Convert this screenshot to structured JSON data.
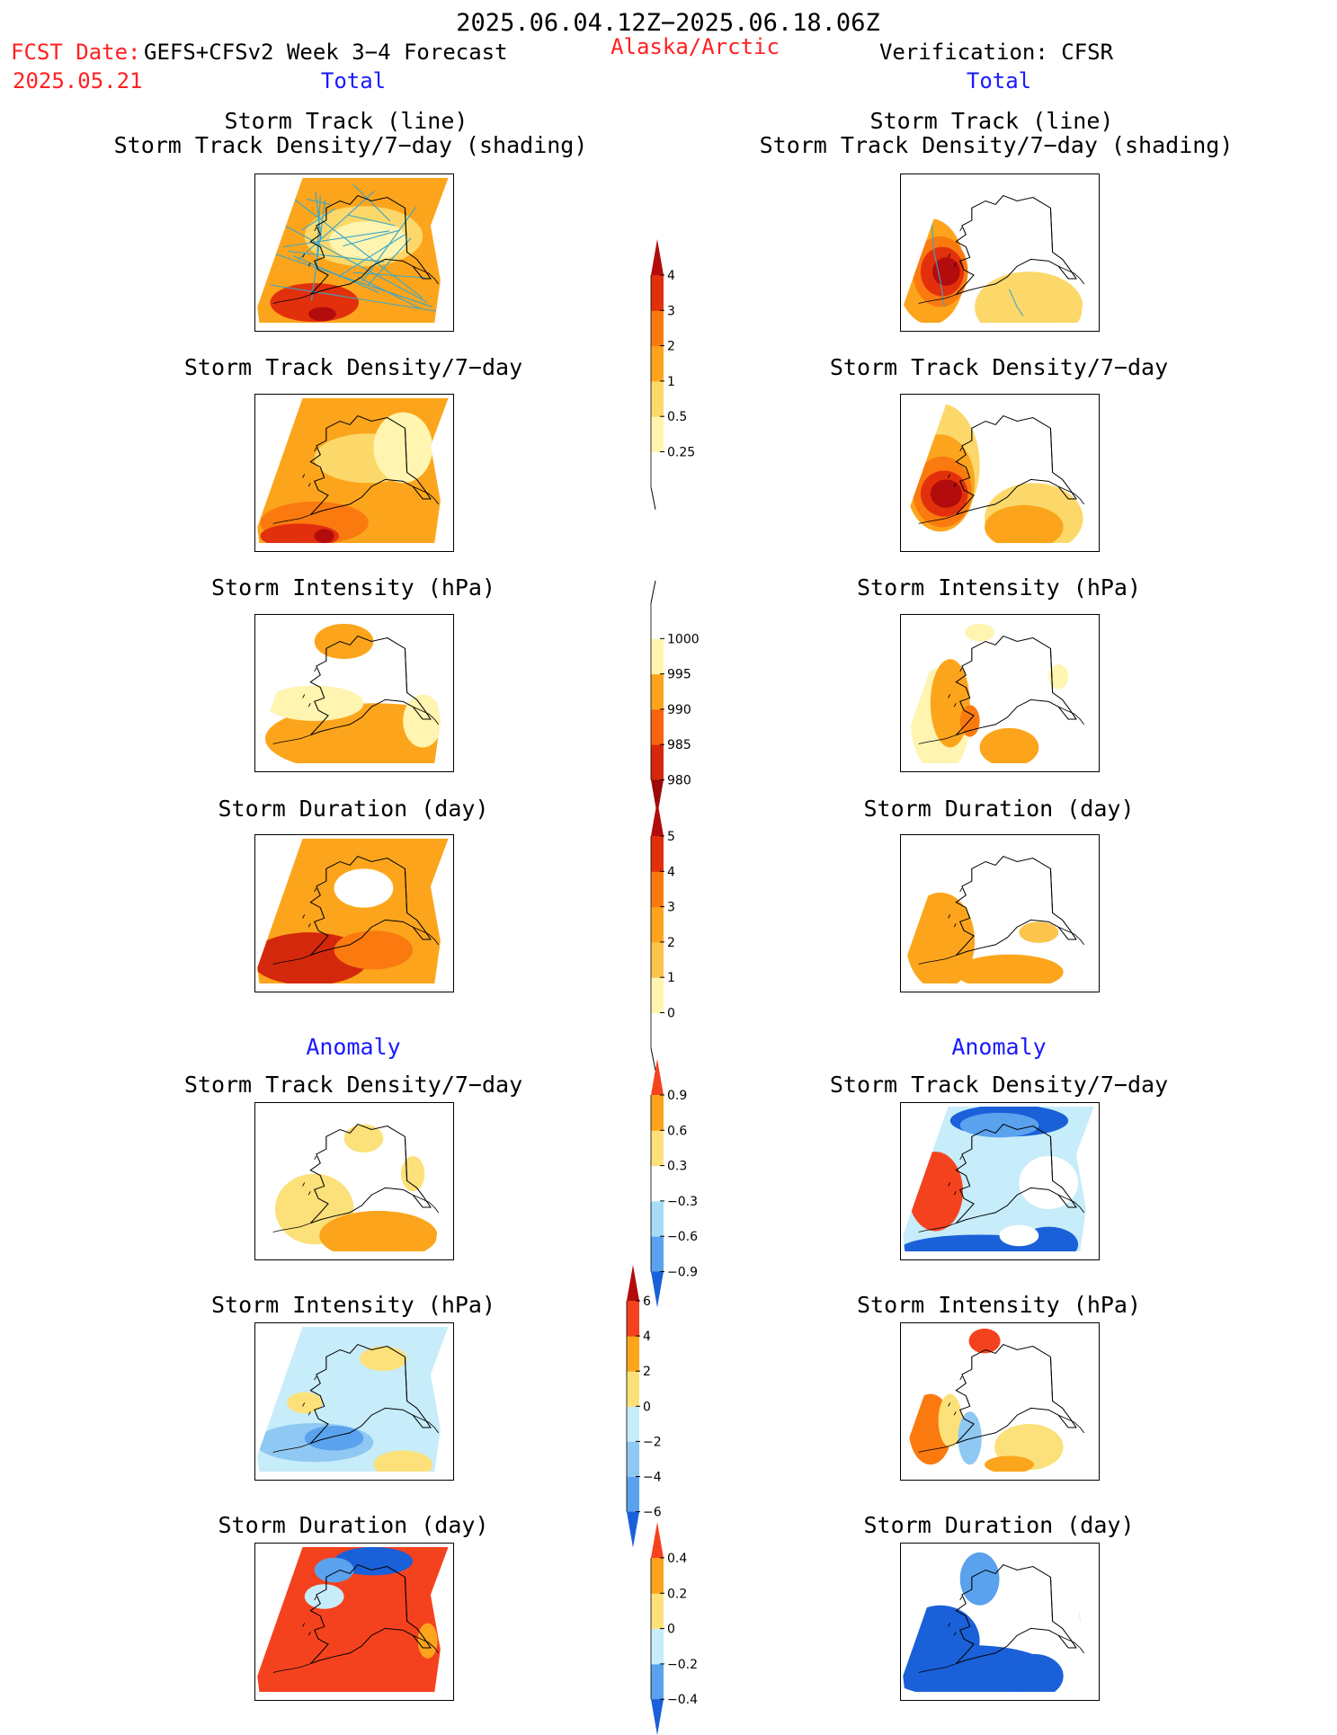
{
  "header": {
    "period": "2025.06.04.12Z−2025.06.18.06Z",
    "fcst_date_label": "FCST Date:",
    "fcst_date": "2025.05.21",
    "model": "GEFS+CFSv2 Week 3−4 Forecast",
    "region": "Alaska/Arctic",
    "verification": "Verification: CFSR"
  },
  "sections": {
    "total": "Total",
    "anomaly": "Anomaly"
  },
  "panel_titles": {
    "track_line": "Storm Track (line)",
    "track_shading": "Storm Track Density/7−day (shading)",
    "density": "Storm Track Density/7−day",
    "intensity": "Storm Intensity (hPa)",
    "duration": "Storm Duration (day)"
  },
  "colorbars": {
    "density_total": {
      "ticks": [
        "0.25",
        "0.5",
        "1",
        "2",
        "3",
        "4"
      ],
      "colors": [
        "#ffffff",
        "#fff4b0",
        "#fcd86a",
        "#fca51c",
        "#fa7a10",
        "#e3300c",
        "#b20c0c"
      ]
    },
    "intensity_total": {
      "ticks": [
        "980",
        "985",
        "990",
        "995",
        "1000"
      ],
      "colors": [
        "#9a0a0a",
        "#d4280c",
        "#fa6310",
        "#fca51c",
        "#fff4b0",
        "#ffffff"
      ]
    },
    "duration_total": {
      "ticks": [
        "0",
        "1",
        "2",
        "3",
        "4",
        "5"
      ],
      "colors": [
        "#ffffff",
        "#fff4b0",
        "#fcc44c",
        "#fca51c",
        "#fa7a10",
        "#e3300c",
        "#b20c0c"
      ]
    },
    "density_anom": {
      "ticks": [
        "−0.9",
        "−0.6",
        "−0.3",
        "0.3",
        "0.6",
        "0.9"
      ],
      "colors": [
        "#1a60d8",
        "#5aa2ee",
        "#a6dcf6",
        "#ffffff",
        "#fce17a",
        "#fca51c",
        "#f5421e"
      ]
    },
    "intensity_anom": {
      "ticks": [
        "−6",
        "−4",
        "−2",
        "0",
        "2",
        "4",
        "6"
      ],
      "colors": [
        "#1a60d8",
        "#5aa2ee",
        "#8fc8f2",
        "#c7ecfa",
        "#fce17a",
        "#fca51c",
        "#f5421e",
        "#b20c0c"
      ]
    },
    "duration_anom": {
      "ticks": [
        "−0.4",
        "−0.2",
        "0",
        "0.2",
        "0.4"
      ],
      "colors": [
        "#1a60d8",
        "#5aa2ee",
        "#c7ecfa",
        "#fce17a",
        "#fca51c",
        "#f5421e"
      ]
    }
  }
}
